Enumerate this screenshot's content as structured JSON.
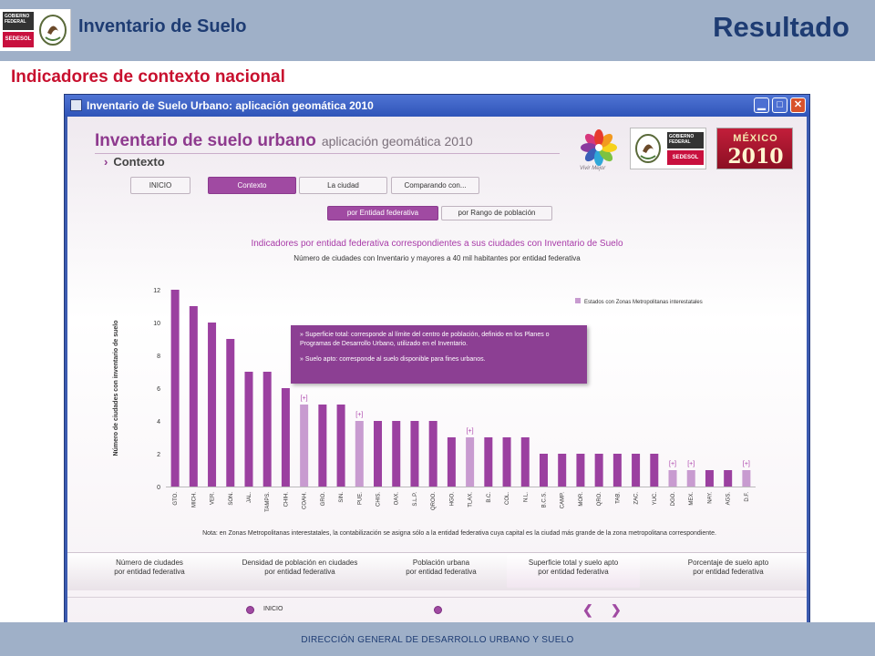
{
  "slide": {
    "logo_gobierno": "GOBIERNO FEDERAL",
    "logo_sedesol": "SEDESOL",
    "app_title": "Inventario de Suelo",
    "slide_title": "Resultado",
    "section_title": "Indicadores de contexto nacional",
    "footer": "DIRECCIÓN GENERAL DE DESARROLLO URBANO Y SUELO"
  },
  "window": {
    "title": "Inventario de Suelo Urbano: aplicación geomática 2010",
    "minimize": "▁",
    "maximize": "□",
    "close": "✕"
  },
  "app": {
    "heading": "Inventario de suelo urbano",
    "heading_sub": "aplicación geomática 2010",
    "section": "Contexto",
    "logos": {
      "vivir_mejor": "Vivir Mejor",
      "gobierno": "GOBIERNO FEDERAL",
      "sedesol": "SEDESOL",
      "mexico_word": "MÉXICO",
      "mexico_year": "2010"
    },
    "nav_tabs": [
      "INICIO",
      "Contexto",
      "La ciudad",
      "Comparando con..."
    ],
    "active_nav_tab": 1,
    "sub_tabs": [
      "por Entidad federativa",
      "por Rango de población"
    ],
    "active_sub_tab": 0,
    "info_box": [
      "» Superficie total: corresponde al límite del centro de población, definido en los Planes o Programas de Desarrollo Urbano, utilizado en el Inventario.",
      "» Suelo apto: corresponde al suelo disponible para fines urbanos."
    ],
    "note": "Nota: en Zonas Metropolitanas interestatales, la contabilización se asigna sólo a la entidad federativa cuya capital es la ciudad más grande de la zona metropolitana correspondiente.",
    "bottom_tabs": [
      "Número de ciudades\npor entidad federativa",
      "Densidad de población en ciudades\npor entidad federativa",
      "Población urbana\npor entidad federativa",
      "Superficie total y suelo apto\npor entidad federativa",
      "Porcentaje de suelo apto\npor entidad federativa"
    ],
    "active_bottom_tab": 3,
    "bottom_nav_label": "INICIO",
    "nav_prev": "❮",
    "nav_next": "❯"
  },
  "colors": {
    "bar": "#9b40a0",
    "bar_light": "#c89bd0",
    "title_pink": "#a83aa8"
  },
  "chart_data": {
    "type": "bar",
    "title": "Indicadores por entidad federativa correspondientes a sus ciudades con Inventario de Suelo",
    "subtitle": "Número de ciudades con Inventario y mayores a 40 mil habitantes por entidad federativa",
    "ylabel": "Número de ciudades con inventario de suelo",
    "xlabel": "",
    "ylim": [
      0,
      12
    ],
    "yticks": [
      0,
      2,
      4,
      6,
      8,
      10,
      12
    ],
    "legend": "Estados con Zonas Metropolitanas interestatales",
    "legend_position": "top-right",
    "expand_marker": "[+]",
    "categories": [
      "GTO.",
      "MICH.",
      "VER.",
      "SON.",
      "JAL.",
      "TAMPS.",
      "CHIH.",
      "COAH.",
      "GRO.",
      "SIN.",
      "PUE.",
      "CHIS.",
      "OAX.",
      "S.L.P.",
      "QROO.",
      "HGO.",
      "TLAX.",
      "B.C.",
      "COL.",
      "N.L.",
      "B.C.S.",
      "CAMP.",
      "MOR.",
      "QRO.",
      "TAB.",
      "ZAC.",
      "YUC.",
      "DGO.",
      "MEX.",
      "NAY.",
      "AGS.",
      "D.F."
    ],
    "values": [
      12,
      11,
      10,
      9,
      7,
      7,
      6,
      5,
      5,
      5,
      4,
      4,
      4,
      4,
      4,
      3,
      3,
      3,
      3,
      3,
      2,
      2,
      2,
      2,
      2,
      2,
      2,
      1,
      1,
      1,
      1,
      1
    ],
    "interstate": [
      false,
      false,
      false,
      false,
      false,
      false,
      false,
      true,
      false,
      false,
      true,
      false,
      false,
      false,
      false,
      false,
      true,
      false,
      false,
      false,
      false,
      false,
      false,
      false,
      false,
      false,
      false,
      true,
      true,
      false,
      false,
      true
    ]
  }
}
